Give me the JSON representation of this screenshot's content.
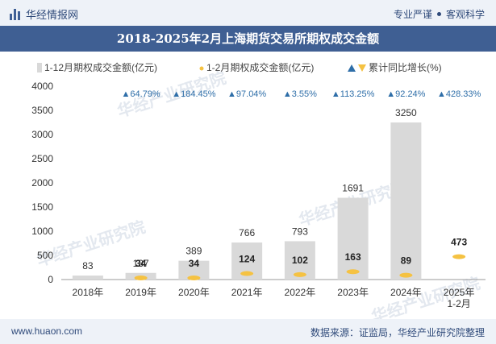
{
  "header": {
    "brand": "华经情报网",
    "slogan_left": "专业严谨",
    "slogan_right": "客观科学"
  },
  "footer": {
    "url": "www.huaon.com",
    "source": "数据来源：证监局，华经产业研究院整理"
  },
  "watermark": "华经产业研究院",
  "colors": {
    "bar_full_year": "#d9d9d9",
    "bar_jan_feb": "#f5c242",
    "growth_up": "#2e6ea8",
    "title_bg": "#3f5f93"
  },
  "chart_data": {
    "type": "bar",
    "title": "2018-2025年2月上海期货交易所期权成交金额",
    "categories": [
      "2018年",
      "2019年",
      "2020年",
      "2021年",
      "2022年",
      "2023年",
      "2024年",
      "2025年\n1-2月"
    ],
    "series": [
      {
        "name": "1-12月期权成交金额(亿元)",
        "values": [
          83,
          137,
          389,
          766,
          793,
          1691,
          3250,
          null
        ]
      },
      {
        "name": "1-2月期权成交金额(亿元)",
        "values": [
          null,
          34,
          34,
          124,
          102,
          163,
          89,
          473
        ]
      }
    ],
    "growth": {
      "name": "累计同比增长(%)",
      "labels": [
        "",
        "▲64.79%",
        "▲184.45%",
        "▲97.04%",
        "▲3.55%",
        "▲113.25%",
        "▲92.24%",
        "▲428.33%"
      ]
    },
    "ylim": [
      0,
      4000
    ],
    "yticks": [
      0,
      500,
      1000,
      1500,
      2000,
      2500,
      3000,
      3500,
      4000
    ],
    "xlabel": "",
    "ylabel": ""
  }
}
